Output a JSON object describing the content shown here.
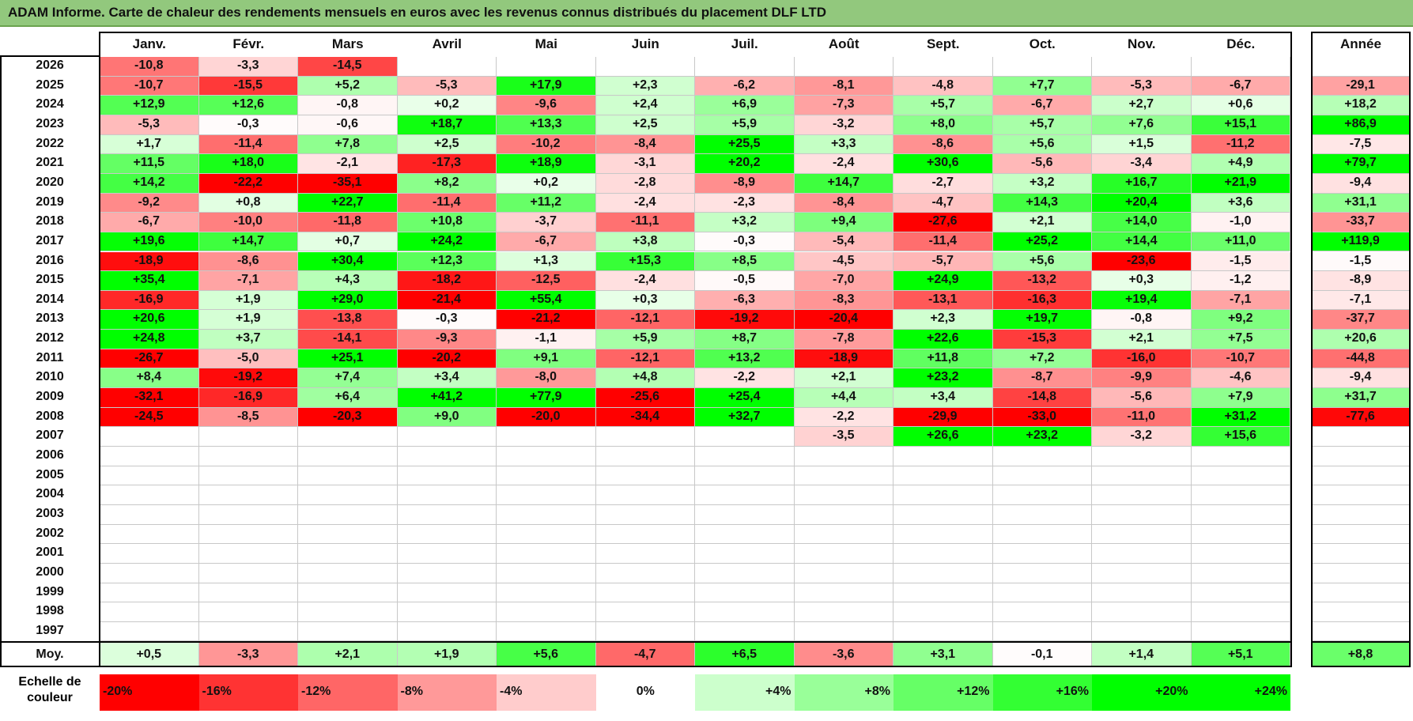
{
  "title": "ADAM Informe. Carte de chaleur des rendements mensuels en euros avec les revenus connus distribués du placement DLF LTD",
  "chart_data": {
    "type": "heatmap",
    "months": [
      "Janv.",
      "Févr.",
      "Mars",
      "Avril",
      "Mai",
      "Juin",
      "Juil.",
      "Août",
      "Sept.",
      "Oct.",
      "Nov.",
      "Déc."
    ],
    "year_header": "Année",
    "rows": [
      {
        "year": "2026",
        "values": [
          "-10,8",
          "-3,3",
          "-14,5",
          "",
          "",
          "",
          "",
          "",
          "",
          "",
          "",
          ""
        ],
        "annual": ""
      },
      {
        "year": "2025",
        "values": [
          "-10,7",
          "-15,5",
          "+5,2",
          "-5,3",
          "+17,9",
          "+2,3",
          "-6,2",
          "-8,1",
          "-4,8",
          "+7,7",
          "-5,3",
          "-6,7"
        ],
        "annual": "-29,1"
      },
      {
        "year": "2024",
        "values": [
          "+12,9",
          "+12,6",
          "-0,8",
          "+0,2",
          "-9,6",
          "+2,4",
          "+6,9",
          "-7,3",
          "+5,7",
          "-6,7",
          "+2,7",
          "+0,6"
        ],
        "annual": "+18,2"
      },
      {
        "year": "2023",
        "values": [
          "-5,3",
          "-0,3",
          "-0,6",
          "+18,7",
          "+13,3",
          "+2,5",
          "+5,9",
          "-3,2",
          "+8,0",
          "+5,7",
          "+7,6",
          "+15,1"
        ],
        "annual": "+86,9"
      },
      {
        "year": "2022",
        "values": [
          "+1,7",
          "-11,4",
          "+7,8",
          "+2,5",
          "-10,2",
          "-8,4",
          "+25,5",
          "+3,3",
          "-8,6",
          "+5,6",
          "+1,5",
          "-11,2"
        ],
        "annual": "-7,5"
      },
      {
        "year": "2021",
        "values": [
          "+11,5",
          "+18,0",
          "-2,1",
          "-17,3",
          "+18,9",
          "-3,1",
          "+20,2",
          "-2,4",
          "+30,6",
          "-5,6",
          "-3,4",
          "+4,9"
        ],
        "annual": "+79,7"
      },
      {
        "year": "2020",
        "values": [
          "+14,2",
          "-22,2",
          "-35,1",
          "+8,2",
          "+0,2",
          "-2,8",
          "-8,9",
          "+14,7",
          "-2,7",
          "+3,2",
          "+16,7",
          "+21,9"
        ],
        "annual": "-9,4"
      },
      {
        "year": "2019",
        "values": [
          "-9,2",
          "+0,8",
          "+22,7",
          "-11,4",
          "+11,2",
          "-2,4",
          "-2,3",
          "-8,4",
          "-4,7",
          "+14,3",
          "+20,4",
          "+3,6"
        ],
        "annual": "+31,1"
      },
      {
        "year": "2018",
        "values": [
          "-6,7",
          "-10,0",
          "-11,8",
          "+10,8",
          "-3,7",
          "-11,1",
          "+3,2",
          "+9,4",
          "-27,6",
          "+2,1",
          "+14,0",
          "-1,0"
        ],
        "annual": "-33,7"
      },
      {
        "year": "2017",
        "values": [
          "+19,6",
          "+14,7",
          "+0,7",
          "+24,2",
          "-6,7",
          "+3,8",
          "-0,3",
          "-5,4",
          "-11,4",
          "+25,2",
          "+14,4",
          "+11,0"
        ],
        "annual": "+119,9"
      },
      {
        "year": "2016",
        "values": [
          "-18,9",
          "-8,6",
          "+30,4",
          "+12,3",
          "+1,3",
          "+15,3",
          "+8,5",
          "-4,5",
          "-5,7",
          "+5,6",
          "-23,6",
          "-1,5"
        ],
        "annual": "-1,5"
      },
      {
        "year": "2015",
        "values": [
          "+35,4",
          "-7,1",
          "+4,3",
          "-18,2",
          "-12,5",
          "-2,4",
          "-0,5",
          "-7,0",
          "+24,9",
          "-13,2",
          "+0,3",
          "-1,2"
        ],
        "annual": "-8,9"
      },
      {
        "year": "2014",
        "values": [
          "-16,9",
          "+1,9",
          "+29,0",
          "-21,4",
          "+55,4",
          "+0,3",
          "-6,3",
          "-8,3",
          "-13,1",
          "-16,3",
          "+19,4",
          "-7,1"
        ],
        "annual": "-7,1"
      },
      {
        "year": "2013",
        "values": [
          "+20,6",
          "+1,9",
          "-13,8",
          "-0,3",
          "-21,2",
          "-12,1",
          "-19,2",
          "-20,4",
          "+2,3",
          "+19,7",
          "-0,8",
          "+9,2"
        ],
        "annual": "-37,7"
      },
      {
        "year": "2012",
        "values": [
          "+24,8",
          "+3,7",
          "-14,1",
          "-9,3",
          "-1,1",
          "+5,9",
          "+8,7",
          "-7,8",
          "+22,6",
          "-15,3",
          "+2,1",
          "+7,5"
        ],
        "annual": "+20,6"
      },
      {
        "year": "2011",
        "values": [
          "-26,7",
          "-5,0",
          "+25,1",
          "-20,2",
          "+9,1",
          "-12,1",
          "+13,2",
          "-18,9",
          "+11,8",
          "+7,2",
          "-16,0",
          "-10,7"
        ],
        "annual": "-44,8"
      },
      {
        "year": "2010",
        "values": [
          "+8,4",
          "-19,2",
          "+7,4",
          "+3,4",
          "-8,0",
          "+4,8",
          "-2,2",
          "+2,1",
          "+23,2",
          "-8,7",
          "-9,9",
          "-4,6"
        ],
        "annual": "-9,4"
      },
      {
        "year": "2009",
        "values": [
          "-32,1",
          "-16,9",
          "+6,4",
          "+41,2",
          "+77,9",
          "-25,6",
          "+25,4",
          "+4,4",
          "+3,4",
          "-14,8",
          "-5,6",
          "+7,9"
        ],
        "annual": "+31,7"
      },
      {
        "year": "2008",
        "values": [
          "-24,5",
          "-8,5",
          "-20,3",
          "+9,0",
          "-20,0",
          "-34,4",
          "+32,7",
          "-2,2",
          "-29,9",
          "-33,0",
          "-11,0",
          "+31,2"
        ],
        "annual": "-77,6"
      },
      {
        "year": "2007",
        "values": [
          "",
          "",
          "",
          "",
          "",
          "",
          "",
          "-3,5",
          "+26,6",
          "+23,2",
          "-3,2",
          "+15,6"
        ],
        "annual": ""
      },
      {
        "year": "2006",
        "values": [
          "",
          "",
          "",
          "",
          "",
          "",
          "",
          "",
          "",
          "",
          "",
          ""
        ],
        "annual": ""
      },
      {
        "year": "2005",
        "values": [
          "",
          "",
          "",
          "",
          "",
          "",
          "",
          "",
          "",
          "",
          "",
          ""
        ],
        "annual": ""
      },
      {
        "year": "2004",
        "values": [
          "",
          "",
          "",
          "",
          "",
          "",
          "",
          "",
          "",
          "",
          "",
          ""
        ],
        "annual": ""
      },
      {
        "year": "2003",
        "values": [
          "",
          "",
          "",
          "",
          "",
          "",
          "",
          "",
          "",
          "",
          "",
          ""
        ],
        "annual": ""
      },
      {
        "year": "2002",
        "values": [
          "",
          "",
          "",
          "",
          "",
          "",
          "",
          "",
          "",
          "",
          "",
          ""
        ],
        "annual": ""
      },
      {
        "year": "2001",
        "values": [
          "",
          "",
          "",
          "",
          "",
          "",
          "",
          "",
          "",
          "",
          "",
          ""
        ],
        "annual": ""
      },
      {
        "year": "2000",
        "values": [
          "",
          "",
          "",
          "",
          "",
          "",
          "",
          "",
          "",
          "",
          "",
          ""
        ],
        "annual": ""
      },
      {
        "year": "1999",
        "values": [
          "",
          "",
          "",
          "",
          "",
          "",
          "",
          "",
          "",
          "",
          "",
          ""
        ],
        "annual": ""
      },
      {
        "year": "1998",
        "values": [
          "",
          "",
          "",
          "",
          "",
          "",
          "",
          "",
          "",
          "",
          "",
          ""
        ],
        "annual": ""
      },
      {
        "year": "1997",
        "values": [
          "",
          "",
          "",
          "",
          "",
          "",
          "",
          "",
          "",
          "",
          "",
          ""
        ],
        "annual": ""
      }
    ],
    "average": {
      "label": "Moy.",
      "values": [
        "+0,5",
        "-3,3",
        "+2,1",
        "+1,9",
        "+5,6",
        "-4,7",
        "+6,5",
        "-3,6",
        "+3,1",
        "-0,1",
        "+1,4",
        "+5,1"
      ],
      "annual": "+8,8"
    },
    "color_scale": {
      "label": "Echelle de couleur",
      "steps": [
        "-20%",
        "-16%",
        "-12%",
        "-8%",
        "-4%",
        "0%",
        "+4%",
        "+8%",
        "+12%",
        "+16%",
        "+20%",
        "+24%"
      ],
      "colors": [
        "#ff0000",
        "#ff3333",
        "#ff6666",
        "#ff9999",
        "#ffcccc",
        "#ffffff",
        "#ccffcc",
        "#99ff99",
        "#66ff66",
        "#33ff33",
        "#00ff00",
        "#00ff00"
      ]
    }
  }
}
